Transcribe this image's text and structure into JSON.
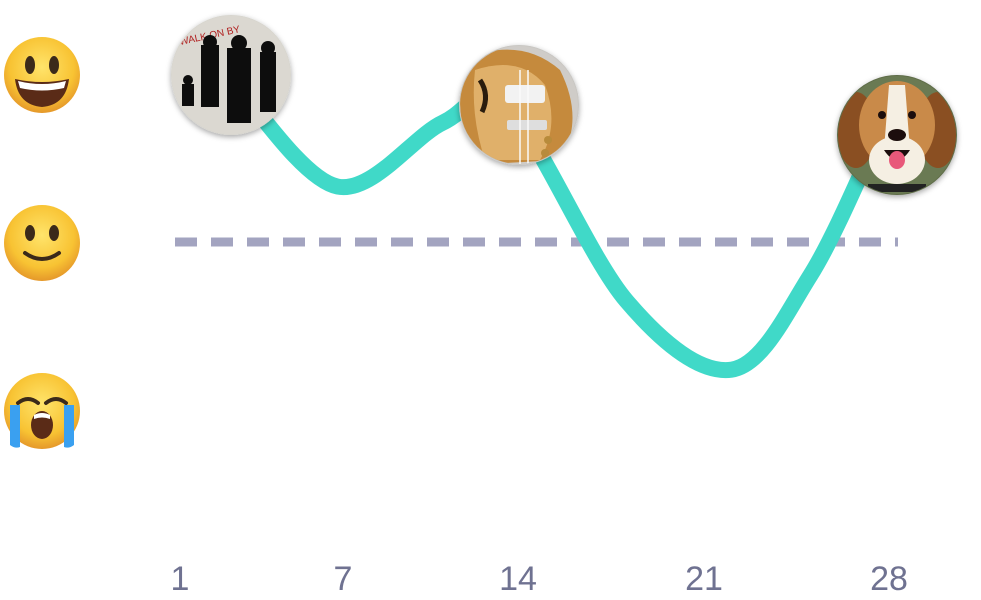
{
  "chart_data": {
    "type": "line",
    "x_ticks": [
      "1",
      "7",
      "14",
      "21",
      "28"
    ],
    "y_levels": [
      {
        "icon": "grinning-face-icon",
        "value": 1
      },
      {
        "icon": "slightly-smiling-face-icon",
        "value": 0
      },
      {
        "icon": "loudly-crying-face-icon",
        "value": -1
      }
    ],
    "baseline": 0,
    "series": [
      {
        "color": "#40d9c8",
        "points": [
          {
            "x": 3,
            "y": 0.96
          },
          {
            "x": 7,
            "y": 0.33
          },
          {
            "x": 11,
            "y": 0.71
          },
          {
            "x": 13.5,
            "y": 0.8
          },
          {
            "x": 18,
            "y": -0.35
          },
          {
            "x": 22,
            "y": -0.76
          },
          {
            "x": 25,
            "y": -0.2
          },
          {
            "x": 27.5,
            "y": 0.6
          }
        ]
      }
    ],
    "photo_markers": [
      {
        "x": 3.2,
        "y": 0.95,
        "icon": "album-cover-photo"
      },
      {
        "x": 13.7,
        "y": 0.81,
        "icon": "guitar-photo"
      },
      {
        "x": 27.6,
        "y": 0.6,
        "icon": "beagle-photo"
      }
    ],
    "colors": {
      "line": "#40d9c8",
      "baseline": "#a3a4c0",
      "ticks": "#6f7291"
    }
  }
}
